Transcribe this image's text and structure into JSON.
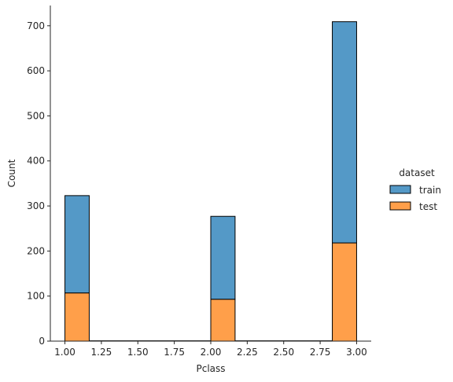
{
  "chart_data": {
    "type": "bar",
    "stacked": true,
    "xlabel": "Pclass",
    "ylabel": "Count",
    "xlim": [
      0.9,
      3.1
    ],
    "ylim": [
      0,
      745
    ],
    "bin_width": 0.1667,
    "bins": [
      {
        "x_start": 1.0,
        "x_end": 1.1667
      },
      {
        "x_start": 2.0,
        "x_end": 2.1667
      },
      {
        "x_start": 2.8333,
        "x_end": 3.0
      }
    ],
    "series": [
      {
        "name": "test",
        "color": "#ff9f4a",
        "values": [
          107,
          93,
          218
        ]
      },
      {
        "name": "train",
        "color": "#5499c7",
        "values": [
          216,
          184,
          491
        ]
      }
    ],
    "x_ticks": [
      1.0,
      1.25,
      1.5,
      1.75,
      2.0,
      2.25,
      2.5,
      2.75,
      3.0
    ],
    "x_tick_labels": [
      "1.00",
      "1.25",
      "1.50",
      "1.75",
      "2.00",
      "2.25",
      "2.50",
      "2.75",
      "3.00"
    ],
    "y_ticks": [
      0,
      100,
      200,
      300,
      400,
      500,
      600,
      700
    ],
    "y_tick_labels": [
      "0",
      "100",
      "200",
      "300",
      "400",
      "500",
      "600",
      "700"
    ],
    "grid": false,
    "legend": {
      "title": "dataset",
      "placement": "right",
      "entries": [
        {
          "label": "train",
          "color": "#5499c7"
        },
        {
          "label": "test",
          "color": "#ff9f4a"
        }
      ]
    }
  }
}
